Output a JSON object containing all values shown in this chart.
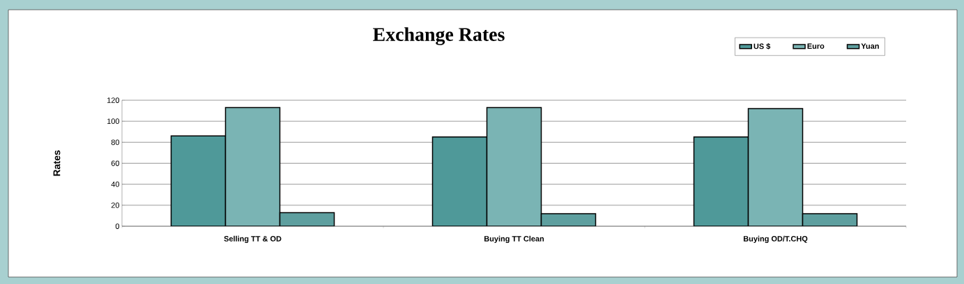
{
  "chart_data": {
    "type": "bar",
    "title": "Exchange Rates",
    "ylabel": "Rates",
    "categories": [
      "Selling TT & OD",
      "Buying TT Clean",
      "Buying OD/T.CHQ"
    ],
    "series": [
      {
        "name": "US $",
        "color": "#4f9999",
        "values": [
          86,
          85,
          85
        ]
      },
      {
        "name": "Euro",
        "color": "#7ab4b4",
        "values": [
          113,
          113,
          112
        ]
      },
      {
        "name": "Yuan",
        "color": "#5e9f9f",
        "values": [
          13,
          12,
          12
        ]
      }
    ],
    "ylim": [
      0,
      120
    ],
    "yticks": [
      0,
      20,
      40,
      60,
      80,
      100,
      120
    ],
    "grid": "y",
    "legend": "top right"
  }
}
